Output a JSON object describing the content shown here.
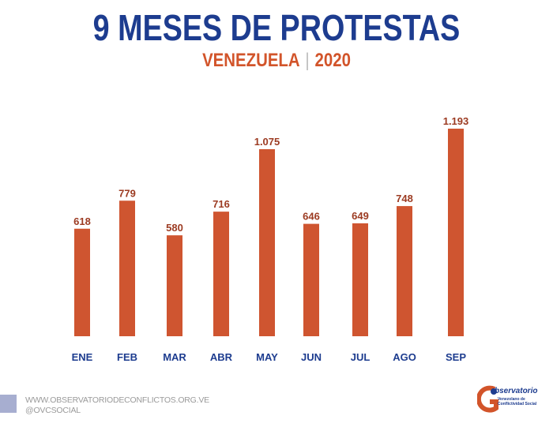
{
  "header": {
    "title": "9 MESES DE PROTESTAS",
    "subtitle_country": "VENEZUELA",
    "subtitle_year": "2020"
  },
  "chart_data": {
    "type": "bar",
    "title": "9 MESES DE PROTESTAS",
    "subtitle": "VENEZUELA | 2020",
    "categories": [
      "ENE",
      "FEB",
      "MAR",
      "ABR",
      "MAY",
      "JUN",
      "JUL",
      "AGO",
      "SEP"
    ],
    "values": [
      618,
      779,
      580,
      716,
      1075,
      646,
      649,
      748,
      1193
    ],
    "data_labels": [
      "618",
      "779",
      "580",
      "716",
      "1.075",
      "646",
      "649",
      "748",
      "1.193"
    ],
    "xlabel": "",
    "ylabel": "",
    "ylim": [
      0,
      1193
    ],
    "grid": false,
    "bar_color": "#cf5530",
    "label_color": "#9c3b22",
    "category_color": "#1d3c8f"
  },
  "footer": {
    "website": "WWW.OBSERVATORIODECONFLICTOS.ORG.VE",
    "social": "@OVCSOCIAL",
    "logo_text": "Observatorio Venezolano de Conflictividad Social"
  }
}
